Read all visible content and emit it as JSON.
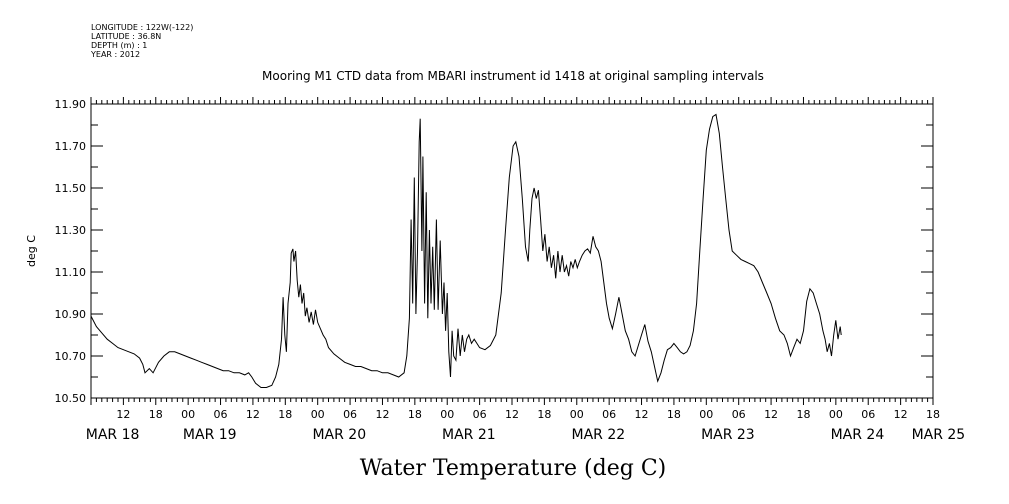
{
  "meta": {
    "longitude": "LONGITUDE : 122W(-122)",
    "latitude": "LATITUDE : 36.8N",
    "depth": "DEPTH (m) : 1",
    "year": "YEAR : 2012"
  },
  "chart_data": {
    "type": "line",
    "title": "Mooring M1 CTD data from MBARI instrument id 1418 at original sampling intervals",
    "xlabel": "Water Temperature (deg C)",
    "ylabel": "deg C",
    "ylim": [
      10.5,
      11.9
    ],
    "xlim_hours": [
      0,
      156
    ],
    "grid": false,
    "y_ticks": [
      "10.50",
      "10.70",
      "10.90",
      "11.10",
      "11.30",
      "11.50",
      "11.70",
      "11.90"
    ],
    "hour_ticks": [
      {
        "h": 6,
        "label": "12"
      },
      {
        "h": 12,
        "label": "18"
      },
      {
        "h": 18,
        "label": "00"
      },
      {
        "h": 24,
        "label": "06"
      },
      {
        "h": 30,
        "label": "12"
      },
      {
        "h": 36,
        "label": "18"
      },
      {
        "h": 42,
        "label": "00"
      },
      {
        "h": 48,
        "label": "06"
      },
      {
        "h": 54,
        "label": "12"
      },
      {
        "h": 60,
        "label": "18"
      },
      {
        "h": 66,
        "label": "00"
      },
      {
        "h": 72,
        "label": "06"
      },
      {
        "h": 78,
        "label": "12"
      },
      {
        "h": 84,
        "label": "18"
      },
      {
        "h": 90,
        "label": "00"
      },
      {
        "h": 96,
        "label": "06"
      },
      {
        "h": 102,
        "label": "12"
      },
      {
        "h": 108,
        "label": "18"
      },
      {
        "h": 114,
        "label": "00"
      },
      {
        "h": 120,
        "label": "06"
      },
      {
        "h": 126,
        "label": "12"
      },
      {
        "h": 132,
        "label": "18"
      },
      {
        "h": 138,
        "label": "00"
      },
      {
        "h": 144,
        "label": "06"
      },
      {
        "h": 150,
        "label": "12"
      },
      {
        "h": 156,
        "label": "18"
      }
    ],
    "day_labels": [
      {
        "h": 4,
        "label": "MAR 18"
      },
      {
        "h": 22,
        "label": "MAR 19"
      },
      {
        "h": 46,
        "label": "MAR 20"
      },
      {
        "h": 70,
        "label": "MAR 21"
      },
      {
        "h": 94,
        "label": "MAR 22"
      },
      {
        "h": 118,
        "label": "MAR 23"
      },
      {
        "h": 142,
        "label": "MAR 24"
      },
      {
        "h": 157,
        "label": "MAR 25"
      }
    ],
    "series": [
      {
        "values": [
          [
            0,
            10.89
          ],
          [
            1,
            10.84
          ],
          [
            2,
            10.81
          ],
          [
            3,
            10.78
          ],
          [
            4,
            10.76
          ],
          [
            5,
            10.74
          ],
          [
            6,
            10.73
          ],
          [
            7,
            10.72
          ],
          [
            8,
            10.71
          ],
          [
            9,
            10.69
          ],
          [
            9.6,
            10.66
          ],
          [
            10,
            10.62
          ],
          [
            10.8,
            10.64
          ],
          [
            11.5,
            10.62
          ],
          [
            12.5,
            10.67
          ],
          [
            13.5,
            10.7
          ],
          [
            14.5,
            10.72
          ],
          [
            15.5,
            10.72
          ],
          [
            16.5,
            10.71
          ],
          [
            17.5,
            10.7
          ],
          [
            18.5,
            10.69
          ],
          [
            19.5,
            10.68
          ],
          [
            20.5,
            10.67
          ],
          [
            21.5,
            10.66
          ],
          [
            22.5,
            10.65
          ],
          [
            23.5,
            10.64
          ],
          [
            24.5,
            10.63
          ],
          [
            25.5,
            10.63
          ],
          [
            26.5,
            10.62
          ],
          [
            27.5,
            10.62
          ],
          [
            28.5,
            10.61
          ],
          [
            29.2,
            10.62
          ],
          [
            29.8,
            10.6
          ],
          [
            30.5,
            10.57
          ],
          [
            31.5,
            10.55
          ],
          [
            32.5,
            10.55
          ],
          [
            33.5,
            10.56
          ],
          [
            34.2,
            10.6
          ],
          [
            34.8,
            10.66
          ],
          [
            35.3,
            10.78
          ],
          [
            35.6,
            10.98
          ],
          [
            35.9,
            10.8
          ],
          [
            36.2,
            10.72
          ],
          [
            36.5,
            10.95
          ],
          [
            36.9,
            11.05
          ],
          [
            37.1,
            11.19
          ],
          [
            37.4,
            11.21
          ],
          [
            37.6,
            11.15
          ],
          [
            37.9,
            11.2
          ],
          [
            38.2,
            11.06
          ],
          [
            38.5,
            10.98
          ],
          [
            38.8,
            11.04
          ],
          [
            39.1,
            10.95
          ],
          [
            39.4,
            11.0
          ],
          [
            39.7,
            10.89
          ],
          [
            40.0,
            10.93
          ],
          [
            40.4,
            10.86
          ],
          [
            40.8,
            10.91
          ],
          [
            41.2,
            10.85
          ],
          [
            41.6,
            10.92
          ],
          [
            42.0,
            10.86
          ],
          [
            42.5,
            10.83
          ],
          [
            43.0,
            10.8
          ],
          [
            43.5,
            10.78
          ],
          [
            44.0,
            10.74
          ],
          [
            45,
            10.71
          ],
          [
            46,
            10.69
          ],
          [
            47,
            10.67
          ],
          [
            48,
            10.66
          ],
          [
            49,
            10.65
          ],
          [
            50,
            10.65
          ],
          [
            51,
            10.64
          ],
          [
            52,
            10.63
          ],
          [
            53,
            10.63
          ],
          [
            54,
            10.62
          ],
          [
            55,
            10.62
          ],
          [
            56,
            10.61
          ],
          [
            57,
            10.6
          ],
          [
            58,
            10.62
          ],
          [
            58.5,
            10.7
          ],
          [
            59.0,
            10.88
          ],
          [
            59.3,
            11.35
          ],
          [
            59.6,
            10.95
          ],
          [
            59.9,
            11.55
          ],
          [
            60.2,
            10.9
          ],
          [
            60.5,
            11.2
          ],
          [
            60.8,
            11.72
          ],
          [
            61.0,
            11.83
          ],
          [
            61.3,
            11.2
          ],
          [
            61.5,
            11.65
          ],
          [
            61.8,
            10.95
          ],
          [
            62.1,
            11.48
          ],
          [
            62.4,
            10.88
          ],
          [
            62.7,
            11.3
          ],
          [
            63.0,
            10.95
          ],
          [
            63.3,
            11.22
          ],
          [
            63.6,
            10.92
          ],
          [
            64.0,
            11.35
          ],
          [
            64.3,
            10.92
          ],
          [
            64.7,
            11.25
          ],
          [
            65.1,
            10.9
          ],
          [
            65.4,
            11.05
          ],
          [
            65.7,
            10.82
          ],
          [
            66.0,
            11.0
          ],
          [
            66.3,
            10.72
          ],
          [
            66.6,
            10.6
          ],
          [
            66.9,
            10.82
          ],
          [
            67.2,
            10.7
          ],
          [
            67.6,
            10.68
          ],
          [
            68.0,
            10.83
          ],
          [
            68.4,
            10.7
          ],
          [
            68.8,
            10.8
          ],
          [
            69.2,
            10.72
          ],
          [
            69.6,
            10.78
          ],
          [
            70.0,
            10.8
          ],
          [
            70.5,
            10.76
          ],
          [
            71.0,
            10.78
          ],
          [
            71.5,
            10.76
          ],
          [
            72.0,
            10.74
          ],
          [
            73.0,
            10.73
          ],
          [
            74.0,
            10.75
          ],
          [
            75.0,
            10.8
          ],
          [
            76.0,
            11.0
          ],
          [
            76.8,
            11.3
          ],
          [
            77.5,
            11.55
          ],
          [
            78.2,
            11.7
          ],
          [
            78.7,
            11.72
          ],
          [
            79.3,
            11.65
          ],
          [
            79.9,
            11.45
          ],
          [
            80.5,
            11.22
          ],
          [
            81.0,
            11.15
          ],
          [
            81.3,
            11.3
          ],
          [
            81.7,
            11.45
          ],
          [
            82.1,
            11.5
          ],
          [
            82.5,
            11.45
          ],
          [
            82.9,
            11.49
          ],
          [
            83.3,
            11.35
          ],
          [
            83.7,
            11.2
          ],
          [
            84.1,
            11.28
          ],
          [
            84.5,
            11.15
          ],
          [
            84.9,
            11.22
          ],
          [
            85.3,
            11.12
          ],
          [
            85.7,
            11.18
          ],
          [
            86.1,
            11.07
          ],
          [
            86.5,
            11.2
          ],
          [
            86.9,
            11.1
          ],
          [
            87.3,
            11.18
          ],
          [
            87.7,
            11.1
          ],
          [
            88.1,
            11.13
          ],
          [
            88.5,
            11.08
          ],
          [
            88.9,
            11.15
          ],
          [
            89.3,
            11.12
          ],
          [
            89.7,
            11.16
          ],
          [
            90.1,
            11.12
          ],
          [
            90.5,
            11.15
          ],
          [
            91.0,
            11.18
          ],
          [
            91.5,
            11.2
          ],
          [
            92.0,
            11.21
          ],
          [
            92.5,
            11.19
          ],
          [
            93.0,
            11.27
          ],
          [
            93.5,
            11.22
          ],
          [
            94.0,
            11.2
          ],
          [
            94.5,
            11.15
          ],
          [
            95.0,
            11.05
          ],
          [
            95.5,
            10.95
          ],
          [
            96.0,
            10.88
          ],
          [
            96.6,
            10.83
          ],
          [
            97.2,
            10.9
          ],
          [
            97.8,
            10.98
          ],
          [
            98.4,
            10.9
          ],
          [
            99.0,
            10.82
          ],
          [
            99.6,
            10.78
          ],
          [
            100.2,
            10.72
          ],
          [
            100.8,
            10.7
          ],
          [
            101.4,
            10.75
          ],
          [
            102.0,
            10.8
          ],
          [
            102.6,
            10.85
          ],
          [
            103.2,
            10.77
          ],
          [
            103.8,
            10.72
          ],
          [
            104.4,
            10.65
          ],
          [
            105.0,
            10.58
          ],
          [
            105.6,
            10.62
          ],
          [
            106.2,
            10.68
          ],
          [
            106.8,
            10.73
          ],
          [
            107.4,
            10.74
          ],
          [
            108.0,
            10.76
          ],
          [
            108.6,
            10.74
          ],
          [
            109.2,
            10.72
          ],
          [
            109.8,
            10.71
          ],
          [
            110.4,
            10.72
          ],
          [
            111.0,
            10.75
          ],
          [
            111.6,
            10.82
          ],
          [
            112.2,
            10.95
          ],
          [
            112.8,
            11.2
          ],
          [
            113.4,
            11.45
          ],
          [
            114.0,
            11.68
          ],
          [
            114.6,
            11.78
          ],
          [
            115.2,
            11.84
          ],
          [
            115.8,
            11.85
          ],
          [
            116.4,
            11.76
          ],
          [
            117.0,
            11.6
          ],
          [
            117.6,
            11.45
          ],
          [
            118.2,
            11.3
          ],
          [
            118.8,
            11.2
          ],
          [
            119.6,
            11.18
          ],
          [
            120.4,
            11.16
          ],
          [
            121.2,
            11.15
          ],
          [
            122.0,
            11.14
          ],
          [
            122.8,
            11.13
          ],
          [
            123.6,
            11.1
          ],
          [
            124.4,
            11.05
          ],
          [
            125.2,
            11.0
          ],
          [
            126.0,
            10.95
          ],
          [
            126.8,
            10.88
          ],
          [
            127.6,
            10.82
          ],
          [
            128.4,
            10.8
          ],
          [
            129.0,
            10.76
          ],
          [
            129.6,
            10.7
          ],
          [
            130.2,
            10.74
          ],
          [
            130.8,
            10.78
          ],
          [
            131.4,
            10.76
          ],
          [
            132.0,
            10.82
          ],
          [
            132.6,
            10.96
          ],
          [
            133.2,
            11.02
          ],
          [
            133.8,
            11.0
          ],
          [
            134.4,
            10.95
          ],
          [
            135.0,
            10.9
          ],
          [
            135.6,
            10.82
          ],
          [
            136.0,
            10.78
          ],
          [
            136.4,
            10.72
          ],
          [
            136.8,
            10.76
          ],
          [
            137.2,
            10.7
          ],
          [
            137.6,
            10.8
          ],
          [
            138.0,
            10.87
          ],
          [
            138.4,
            10.78
          ],
          [
            138.8,
            10.84
          ],
          [
            139.0,
            10.8
          ]
        ]
      }
    ]
  }
}
